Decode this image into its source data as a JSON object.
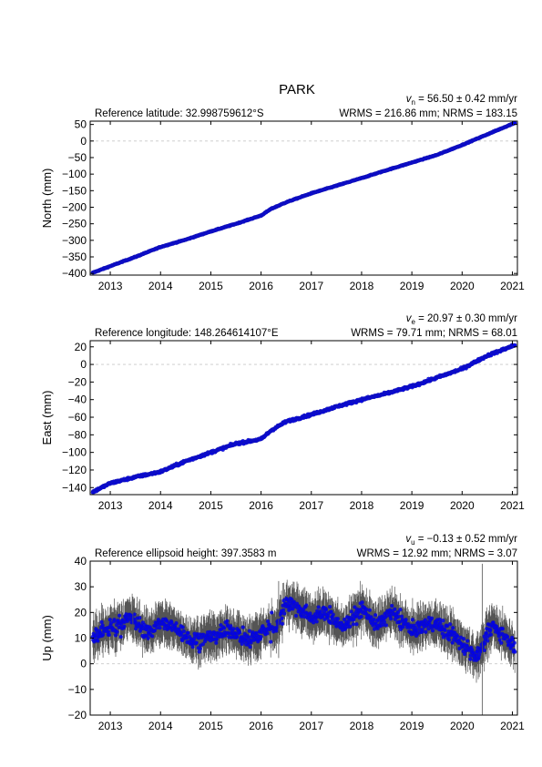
{
  "station": "PARK",
  "colors": {
    "points": "#0000ee",
    "errorbars": "#555555",
    "zero_line": "#c8c8c8",
    "axes": "#000000"
  },
  "chart_data": [
    {
      "type": "scatter",
      "component": "north",
      "ylabel": "North (mm)",
      "reference_label": "Reference latitude: 32.998759612°S",
      "velocity_label": {
        "symbol": "v",
        "subscript": "n",
        "text": " = 56.50 ± 0.42 mm/yr"
      },
      "rms_label": "WRMS = 216.86 mm; NRMS = 183.15",
      "xlim": [
        2012.6,
        2021.1
      ],
      "ylim": [
        -405,
        60
      ],
      "yticks": [
        -400,
        -350,
        -300,
        -250,
        -200,
        -150,
        -100,
        -50,
        0,
        50
      ],
      "xticks": [
        2013,
        2014,
        2015,
        2016,
        2017,
        2018,
        2019,
        2020,
        2021
      ],
      "zero_line": true,
      "error_bars": false,
      "series": [
        {
          "x": [
            2012.65,
            2013.0,
            2013.5,
            2014.0,
            2014.5,
            2015.0,
            2015.5,
            2016.0,
            2016.2,
            2016.5,
            2017.0,
            2017.5,
            2018.0,
            2018.5,
            2019.0,
            2019.5,
            2020.0,
            2020.5,
            2021.05
          ],
          "y": [
            -398,
            -378,
            -350,
            -320,
            -298,
            -273,
            -250,
            -225,
            -205,
            -185,
            -158,
            -135,
            -112,
            -88,
            -65,
            -42,
            -12,
            20,
            55
          ]
        }
      ]
    },
    {
      "type": "scatter",
      "component": "east",
      "ylabel": "East (mm)",
      "reference_label": "Reference longitude: 148.264614107°E",
      "velocity_label": {
        "symbol": "v",
        "subscript": "e",
        "text": " = 20.97 ± 0.30 mm/yr"
      },
      "rms_label": "WRMS = 79.71 mm; NRMS = 68.01",
      "xlim": [
        2012.6,
        2021.1
      ],
      "ylim": [
        -148,
        27
      ],
      "yticks": [
        -140,
        -120,
        -100,
        -80,
        -60,
        -40,
        -20,
        0,
        20
      ],
      "xticks": [
        2013,
        2014,
        2015,
        2016,
        2017,
        2018,
        2019,
        2020,
        2021
      ],
      "zero_line": true,
      "error_bars": false,
      "series": [
        {
          "x": [
            2012.65,
            2013.0,
            2013.5,
            2014.0,
            2014.5,
            2015.0,
            2015.5,
            2016.0,
            2016.2,
            2016.5,
            2017.0,
            2017.5,
            2018.0,
            2018.5,
            2019.0,
            2019.5,
            2020.0,
            2020.5,
            2021.05
          ],
          "y": [
            -145,
            -135,
            -128,
            -122,
            -110,
            -100,
            -90,
            -85,
            -75,
            -65,
            -57,
            -48,
            -40,
            -33,
            -25,
            -15,
            -5,
            10,
            22
          ]
        }
      ]
    },
    {
      "type": "scatter",
      "component": "up",
      "ylabel": "Up (mm)",
      "reference_label": "Reference ellipsoid height: 397.3583 m",
      "velocity_label": {
        "symbol": "v",
        "subscript": "u",
        "text": " = −0.13 ± 0.52 mm/yr"
      },
      "rms_label": "WRMS = 12.92 mm; NRMS = 3.07",
      "xlim": [
        2012.6,
        2021.1
      ],
      "ylim": [
        -20,
        40
      ],
      "yticks": [
        -20,
        -10,
        0,
        10,
        20,
        30,
        40
      ],
      "xticks": [
        2013,
        2014,
        2015,
        2016,
        2017,
        2018,
        2019,
        2020,
        2021
      ],
      "zero_line": true,
      "error_bars": true,
      "series": [
        {
          "x": [
            2012.65,
            2013.0,
            2013.4,
            2013.75,
            2014.0,
            2014.3,
            2014.6,
            2015.0,
            2015.4,
            2015.75,
            2016.0,
            2016.3,
            2016.5,
            2016.75,
            2017.0,
            2017.3,
            2017.6,
            2018.0,
            2018.3,
            2018.6,
            2019.0,
            2019.4,
            2019.7,
            2020.0,
            2020.3,
            2020.6,
            2020.85,
            2021.05
          ],
          "y": [
            10,
            14,
            18,
            12,
            16,
            14,
            9,
            11,
            13,
            9,
            12,
            15,
            24,
            22,
            18,
            20,
            14,
            22,
            15,
            20,
            13,
            16,
            13,
            8,
            3,
            15,
            11,
            7
          ]
        }
      ]
    }
  ]
}
